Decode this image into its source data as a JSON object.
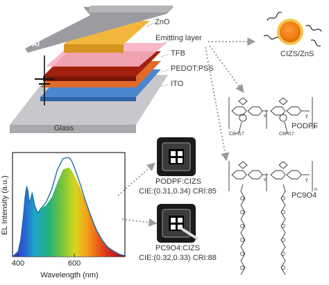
{
  "device": {
    "layers": [
      "ZnO",
      "Emitting layer",
      "TFB",
      "PEDOT:PSS",
      "ITO"
    ],
    "substrate": "Glass",
    "electrode": "Al"
  },
  "nanocrystal": {
    "label": "CIZS/ZnS"
  },
  "polymers": {
    "podpf": {
      "name": "PODPF",
      "side_left": "C8H17",
      "side_right": "C8H17",
      "subscripts": [
        "x",
        "y",
        "n"
      ]
    },
    "pc904": {
      "name": "PC9O4",
      "subscripts": [
        "x",
        "y",
        "n"
      ]
    }
  },
  "photos": [
    {
      "label": "PODPF:CIZS",
      "cie": "CIE:(0.31,0.34)",
      "cri": "CRI:85"
    },
    {
      "label": "PC9O4:CIZS",
      "cie": "CIE:(0.32,0.33)",
      "cri": "CRI:88"
    }
  ],
  "chart_data": {
    "type": "line",
    "ylabel": "EL Intensity (a.u.)",
    "xlabel": "Wavelength (nm)",
    "xticks": [
      "400",
      "600"
    ],
    "xlim": [
      380,
      780
    ],
    "ylim": [
      0,
      1.05
    ],
    "series": [
      {
        "x": [
          380,
          400,
          410,
          420,
          425,
          430,
          435,
          440,
          445,
          450,
          460,
          470,
          480,
          500,
          520,
          540,
          560,
          580,
          590,
          600,
          620,
          640,
          660,
          680,
          700,
          720,
          740,
          760,
          780
        ],
        "y": [
          0.0,
          0.05,
          0.18,
          0.45,
          0.62,
          0.72,
          0.68,
          0.55,
          0.6,
          0.66,
          0.52,
          0.45,
          0.48,
          0.52,
          0.6,
          0.75,
          0.88,
          0.9,
          0.87,
          0.82,
          0.7,
          0.55,
          0.4,
          0.27,
          0.17,
          0.1,
          0.06,
          0.03,
          0.01
        ],
        "fill": "spectrum"
      },
      {
        "x": [
          380,
          400,
          410,
          420,
          425,
          430,
          435,
          440,
          445,
          450,
          460,
          470,
          480,
          500,
          520,
          540,
          560,
          580,
          590,
          600,
          620,
          640,
          660,
          680,
          700,
          720,
          740,
          760,
          780
        ],
        "y": [
          0.0,
          0.05,
          0.18,
          0.44,
          0.6,
          0.7,
          0.66,
          0.54,
          0.58,
          0.64,
          0.5,
          0.44,
          0.48,
          0.55,
          0.68,
          0.88,
          0.99,
          1.0,
          0.97,
          0.9,
          0.74,
          0.56,
          0.4,
          0.26,
          0.16,
          0.09,
          0.05,
          0.02,
          0.01
        ],
        "color": "#1a6fa8"
      }
    ]
  }
}
